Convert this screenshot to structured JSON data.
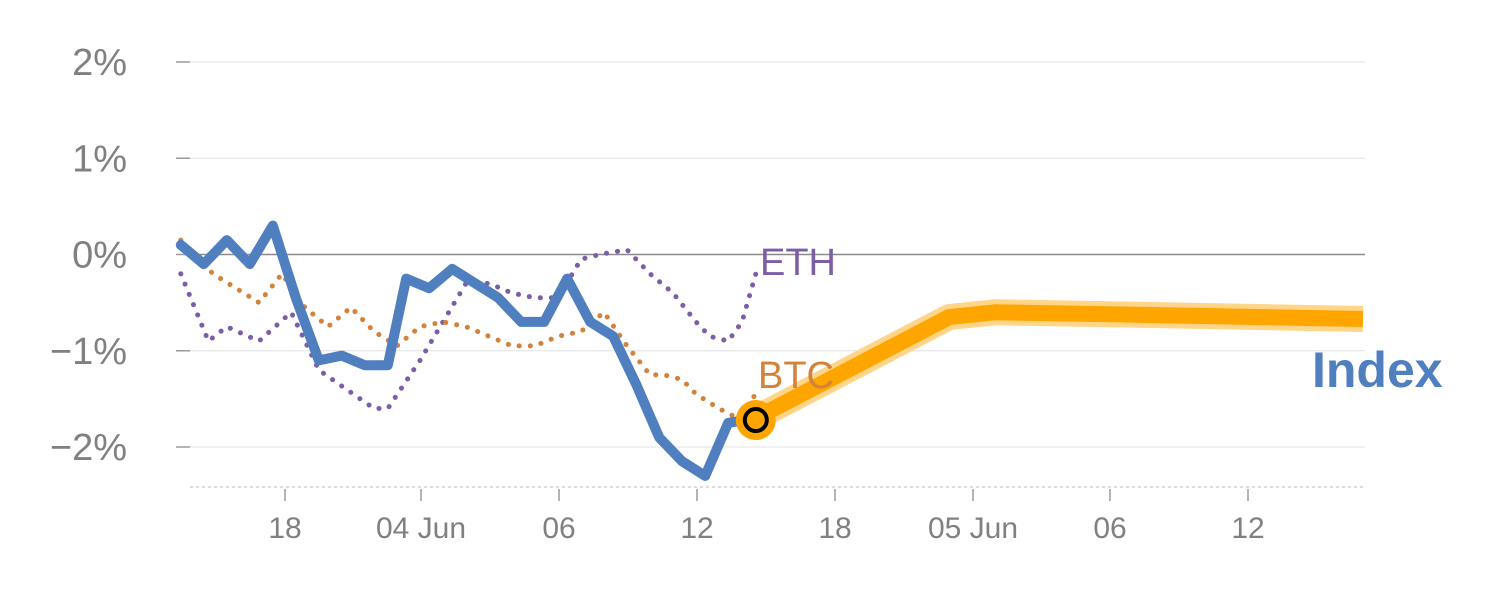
{
  "chart_data": {
    "type": "line",
    "title": "",
    "xlabel": "",
    "ylabel": "",
    "ylim": [
      -2.45,
      2.0
    ],
    "y_ticks": [
      {
        "value": 2,
        "label": "2%"
      },
      {
        "value": 1,
        "label": "1%"
      },
      {
        "value": 0,
        "label": "0%"
      },
      {
        "value": -1,
        "label": "−1%"
      },
      {
        "value": -2,
        "label": "−2%"
      }
    ],
    "x_range": [
      0,
      26
    ],
    "x_ticks": [
      {
        "x": 1.5,
        "label": "18"
      },
      {
        "x": 4.5,
        "label": "04 Jun"
      },
      {
        "x": 7.5,
        "label": "06"
      },
      {
        "x": 10.5,
        "label": "12"
      },
      {
        "x": 13.5,
        "label": "18"
      },
      {
        "x": 16.5,
        "label": "05 Jun"
      },
      {
        "x": 19.5,
        "label": "06"
      },
      {
        "x": 22.5,
        "label": "12"
      }
    ],
    "series": [
      {
        "name": "ETH",
        "color": "#7b5ea7",
        "style": "dotted",
        "x": [
          -0.2,
          0.4,
          0.8,
          1.5,
          2.2,
          2.8,
          3.4,
          4.0,
          4.3,
          5.0,
          5.5,
          6.0,
          6.5,
          7.0,
          7.5,
          8.0,
          8.5,
          8.9,
          9.5,
          10.0,
          10.5,
          11.0,
          11.3,
          11.7,
          12.0,
          12.3
        ],
        "values": [
          -0.2,
          -0.9,
          -0.75,
          -0.9,
          -0.6,
          -1.2,
          -1.4,
          -1.6,
          -1.6,
          -1.1,
          -0.7,
          -0.3,
          -0.3,
          -0.4,
          -0.45,
          -0.45,
          -0.05,
          0.0,
          0.05,
          -0.2,
          -0.4,
          -0.7,
          -0.85,
          -0.9,
          -0.7,
          -0.2
        ]
      },
      {
        "name": "BTC",
        "color": "#d4813a",
        "style": "dotted",
        "x": [
          -0.2,
          0.5,
          1.0,
          1.5,
          2.0,
          2.5,
          3.0,
          3.5,
          4.0,
          4.5,
          5.0,
          5.5,
          6.0,
          6.5,
          7.0,
          7.5,
          8.0,
          8.5,
          9.0,
          9.5,
          10.0,
          10.3,
          10.7,
          11.0,
          11.5,
          11.9,
          12.3
        ],
        "values": [
          0.15,
          -0.2,
          -0.35,
          -0.5,
          -0.2,
          -0.55,
          -0.75,
          -0.55,
          -0.8,
          -0.95,
          -0.75,
          -0.7,
          -0.75,
          -0.85,
          -0.95,
          -0.95,
          -0.85,
          -0.8,
          -0.6,
          -0.95,
          -1.25,
          -1.25,
          -1.3,
          -1.45,
          -1.6,
          -1.7,
          -1.45
        ]
      },
      {
        "name": "Index",
        "color": "#4f7fbf",
        "style": "solid",
        "x": [
          -0.2,
          0.3,
          0.8,
          1.3,
          1.8,
          2.3,
          2.8,
          3.3,
          3.8,
          4.3,
          4.7,
          5.2,
          5.7,
          6.2,
          6.7,
          7.2,
          7.7,
          8.2,
          8.7,
          9.2,
          9.7,
          10.2,
          10.7,
          11.2,
          11.7,
          12.3
        ],
        "values": [
          0.1,
          -0.1,
          0.15,
          -0.1,
          0.3,
          -0.45,
          -1.1,
          -1.05,
          -1.15,
          -1.15,
          -0.25,
          -0.35,
          -0.15,
          -0.3,
          -0.45,
          -0.7,
          -0.7,
          -0.25,
          -0.7,
          -0.85,
          -1.35,
          -1.9,
          -2.15,
          -2.3,
          -1.75,
          -1.7
        ]
      },
      {
        "name": "Index (projection)",
        "color": "#ffa500",
        "style": "thick",
        "x": [
          12.3,
          16.5,
          17.5,
          20.0,
          25.5
        ],
        "values": [
          -1.7,
          -0.65,
          -0.6,
          -0.62,
          -0.67
        ]
      }
    ],
    "marker": {
      "x": 12.3,
      "value": -1.72
    },
    "labels": {
      "eth": "ETH",
      "btc": "BTC",
      "index": "Index"
    }
  }
}
